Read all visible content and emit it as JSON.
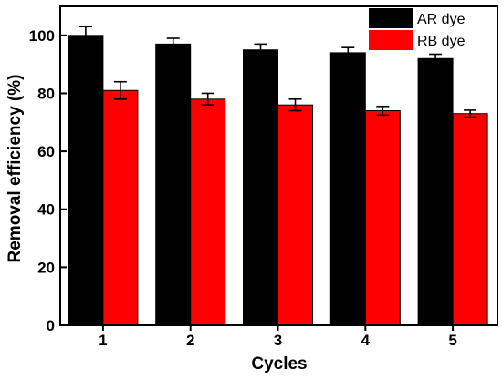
{
  "chart_data": {
    "type": "bar",
    "title": "",
    "xlabel": "Cycles",
    "ylabel": "Removal efficiency (%)",
    "categories": [
      "1",
      "2",
      "3",
      "4",
      "5"
    ],
    "ylim": [
      0,
      110
    ],
    "yticks": [
      "0",
      "20",
      "40",
      "60",
      "80",
      "100"
    ],
    "grid": false,
    "legend_position": "top-right",
    "series": [
      {
        "name": "AR dye",
        "color": "#000000",
        "values": [
          100,
          97,
          95,
          94,
          92
        ],
        "errors": [
          3,
          2,
          2,
          1.8,
          1.5
        ]
      },
      {
        "name": "RB dye",
        "color": "#ff0000",
        "values": [
          81,
          78,
          76,
          74,
          73
        ],
        "errors": [
          3,
          2,
          2,
          1.5,
          1.2
        ]
      }
    ]
  }
}
